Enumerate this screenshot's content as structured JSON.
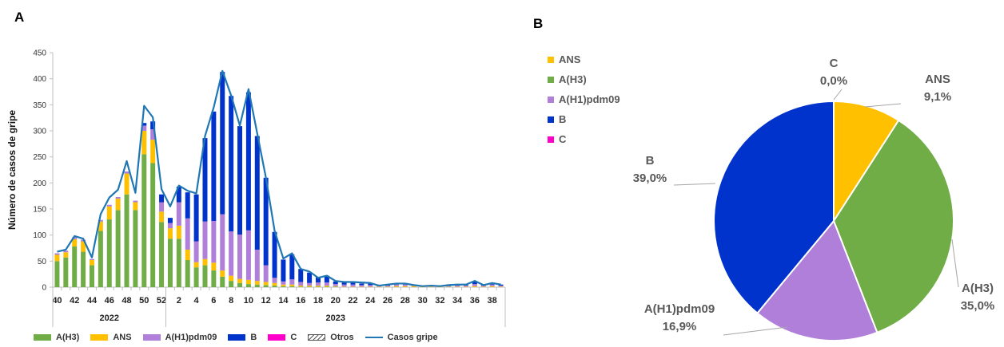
{
  "panel_a_label": "A",
  "panel_b_label": "B",
  "chart_data": [
    {
      "type": "bar",
      "stacked": true,
      "ylabel": "Número de casos de gripe",
      "ylim": [
        0,
        450
      ],
      "yticks": [
        0,
        50,
        100,
        150,
        200,
        250,
        300,
        350,
        400,
        450
      ],
      "x_tick_labels": [
        "40",
        "42",
        "44",
        "46",
        "48",
        "50",
        "52",
        "2",
        "4",
        "6",
        "8",
        "10",
        "12",
        "14",
        "16",
        "18",
        "20",
        "22",
        "24",
        "26",
        "28",
        "30",
        "32",
        "34",
        "36",
        "38"
      ],
      "year_labels": [
        "2022",
        "2023"
      ],
      "series_colors": {
        "A(H3)": "#70ad47",
        "ANS": "#ffc000",
        "A(H1)pdm09": "#b07fd9",
        "B": "#0033cc",
        "C": "#ff00cc",
        "Otros": "#555555",
        "Casos gripe": "#1f77b4"
      },
      "legend": [
        "A(H3)",
        "ANS",
        "A(H1)pdm09",
        "B",
        "C",
        "Otros",
        "Casos gripe"
      ],
      "weeks": [
        "40",
        "41",
        "42",
        "43",
        "44",
        "45",
        "46",
        "47",
        "48",
        "49",
        "50",
        "51",
        "52",
        "1",
        "2",
        "3",
        "4",
        "5",
        "6",
        "7",
        "8",
        "9",
        "10",
        "11",
        "12",
        "13",
        "14",
        "15",
        "16",
        "17",
        "18",
        "19",
        "20",
        "21",
        "22",
        "23",
        "24",
        "25",
        "26",
        "27",
        "28",
        "29",
        "30",
        "31",
        "32",
        "33",
        "34",
        "35",
        "36",
        "37",
        "38",
        "39"
      ],
      "series": [
        {
          "name": "A(H3)",
          "values": [
            50,
            57,
            78,
            68,
            42,
            108,
            130,
            148,
            178,
            148,
            255,
            238,
            125,
            93,
            93,
            52,
            38,
            42,
            32,
            20,
            12,
            8,
            6,
            5,
            4,
            3,
            2,
            2,
            1,
            1,
            1,
            1,
            1,
            0,
            0,
            0,
            0,
            0,
            0,
            0,
            0,
            0,
            0,
            0,
            0,
            0,
            0,
            0,
            0,
            0,
            0,
            0
          ]
        },
        {
          "name": "ANS",
          "values": [
            12,
            10,
            14,
            20,
            10,
            18,
            25,
            22,
            40,
            15,
            45,
            45,
            20,
            20,
            25,
            20,
            10,
            12,
            15,
            12,
            10,
            8,
            8,
            7,
            6,
            5,
            3,
            3,
            2,
            2,
            2,
            2,
            1,
            1,
            1,
            1,
            1,
            1,
            1,
            2,
            2,
            2,
            1,
            1,
            1,
            1,
            1,
            1,
            2,
            1,
            2,
            1
          ]
        },
        {
          "name": "A(H1)pdm09",
          "values": [
            3,
            3,
            4,
            3,
            2,
            3,
            3,
            3,
            4,
            3,
            10,
            20,
            18,
            10,
            45,
            60,
            40,
            72,
            80,
            108,
            85,
            85,
            95,
            60,
            32,
            10,
            6,
            10,
            7,
            5,
            6,
            6,
            4,
            4,
            4,
            3,
            3,
            2,
            2,
            3,
            3,
            2,
            1,
            1,
            1,
            1,
            2,
            2,
            4,
            2,
            3,
            2
          ]
        },
        {
          "name": "B",
          "values": [
            0,
            0,
            0,
            0,
            0,
            0,
            0,
            0,
            0,
            0,
            5,
            15,
            15,
            10,
            30,
            50,
            90,
            160,
            210,
            273,
            260,
            208,
            265,
            218,
            168,
            88,
            42,
            48,
            25,
            20,
            10,
            13,
            5,
            5,
            4,
            3,
            3,
            1,
            1,
            1,
            1,
            0,
            0,
            0,
            0,
            1,
            1,
            1,
            4,
            1,
            2,
            2
          ]
        },
        {
          "name": "C",
          "values": [
            0,
            0,
            0,
            0,
            0,
            0,
            0,
            0,
            0,
            0,
            0,
            0,
            0,
            0,
            0,
            0,
            0,
            0,
            0,
            0,
            0,
            0,
            0,
            0,
            0,
            0,
            0,
            0,
            0,
            0,
            0,
            0,
            0,
            0,
            0,
            0,
            0,
            0,
            0,
            0,
            0,
            0,
            0,
            0,
            0,
            0,
            0,
            0,
            0,
            0,
            0,
            0
          ]
        },
        {
          "name": "Casos gripe",
          "type": "line",
          "values": [
            68,
            72,
            98,
            93,
            57,
            140,
            172,
            187,
            242,
            181,
            348,
            326,
            188,
            155,
            195,
            185,
            180,
            290,
            345,
            415,
            368,
            310,
            380,
            295,
            210,
            108,
            55,
            65,
            35,
            30,
            18,
            22,
            12,
            10,
            10,
            9,
            8,
            3,
            5,
            7,
            7,
            4,
            2,
            3,
            2,
            4,
            5,
            5,
            12,
            4,
            8,
            5
          ]
        }
      ]
    },
    {
      "type": "pie",
      "legend": [
        "ANS",
        "A(H3)",
        "A(H1)pdm09",
        "B",
        "C"
      ],
      "slices": [
        {
          "name": "C",
          "value": 0.0,
          "label": "0,0%",
          "color": "#ff00cc"
        },
        {
          "name": "ANS",
          "value": 9.1,
          "label": "9,1%",
          "color": "#ffc000"
        },
        {
          "name": "A(H3)",
          "value": 35.0,
          "label": "35,0%",
          "color": "#70ad47"
        },
        {
          "name": "A(H1)pdm09",
          "value": 16.9,
          "label": "16,9%",
          "color": "#b07fd9"
        },
        {
          "name": "B",
          "value": 39.0,
          "label": "39,0%",
          "color": "#0033cc"
        }
      ]
    }
  ]
}
